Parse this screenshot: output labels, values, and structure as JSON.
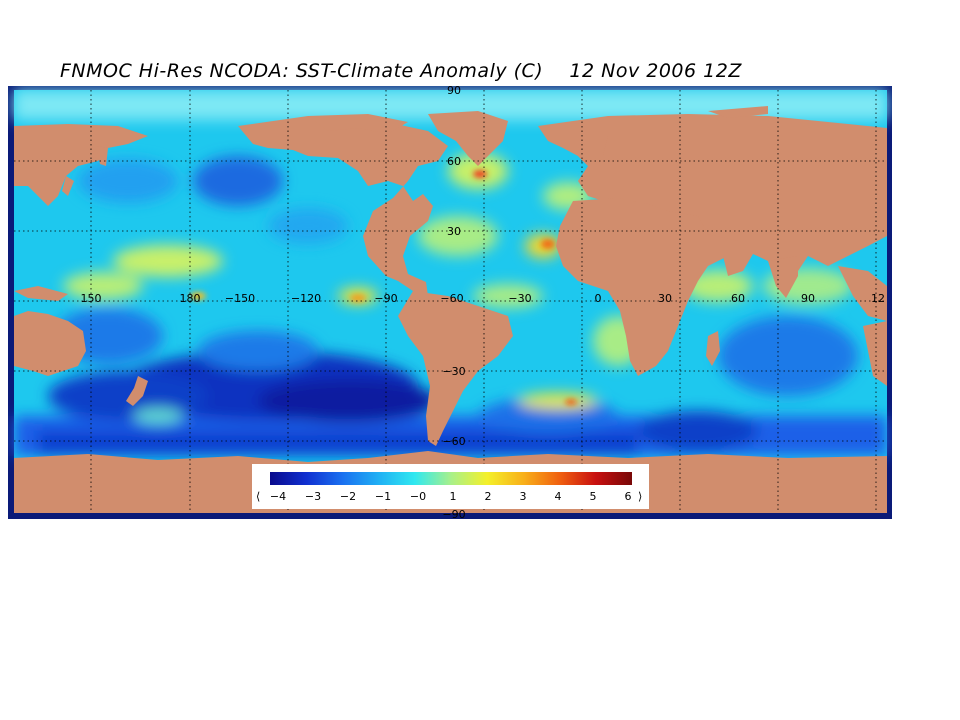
{
  "title": "FNMOC Hi-Res NCODA: SST-Climate Anomaly (C)",
  "date": "12 Nov 2006 12Z",
  "colors": {
    "land": "#d18d6d",
    "frame": "#0a1a78",
    "ocean_base": "#1ec8ee",
    "grid": "#000000"
  },
  "longitude_labels": [
    "150",
    "180",
    "−150",
    "−120",
    "−90",
    "−60",
    "−30",
    "0",
    "30",
    "60",
    "90",
    "12"
  ],
  "latitude_labels": [
    "90",
    "60",
    "30",
    "−30",
    "−60",
    "−90"
  ],
  "colorbar": {
    "left_arrow": "⟨",
    "right_arrow": "⟩",
    "ticks": [
      "−4",
      "−3",
      "−2",
      "−1",
      "−0",
      "1",
      "2",
      "3",
      "4",
      "5",
      "6"
    ],
    "stops": [
      "#0a0a8c",
      "#1030d0",
      "#1a70f0",
      "#20b0f4",
      "#30e8f0",
      "#a8f08a",
      "#f4f02a",
      "#f8b01a",
      "#f06010",
      "#c81010",
      "#780808"
    ]
  }
}
